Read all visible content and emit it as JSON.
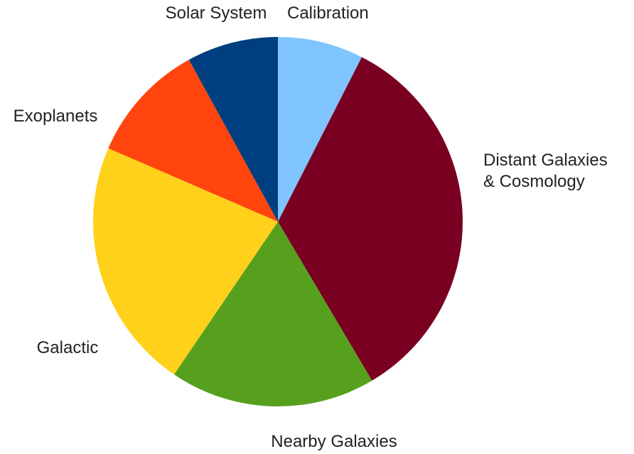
{
  "chart_data": {
    "type": "pie",
    "title": "",
    "slices": [
      {
        "id": "calibration",
        "label_lines": [
          "Calibration"
        ],
        "value": 7.5,
        "color": "#80C4FF"
      },
      {
        "id": "distant-galaxies-cosmology",
        "label_lines": [
          "Distant Galaxies",
          "& Cosmology"
        ],
        "value": 34.0,
        "color": "#7A0022"
      },
      {
        "id": "nearby-galaxies",
        "label_lines": [
          "Nearby Galaxies"
        ],
        "value": 18.0,
        "color": "#57A01E"
      },
      {
        "id": "galactic",
        "label_lines": [
          "Galactic"
        ],
        "value": 22.0,
        "color": "#FFD11A"
      },
      {
        "id": "exoplanets",
        "label_lines": [
          "Exoplanets"
        ],
        "value": 10.5,
        "color": "#FF450D"
      },
      {
        "id": "solar-system",
        "label_lines": [
          "Solar System"
        ],
        "value": 8.0,
        "color": "#003F7F"
      }
    ]
  }
}
